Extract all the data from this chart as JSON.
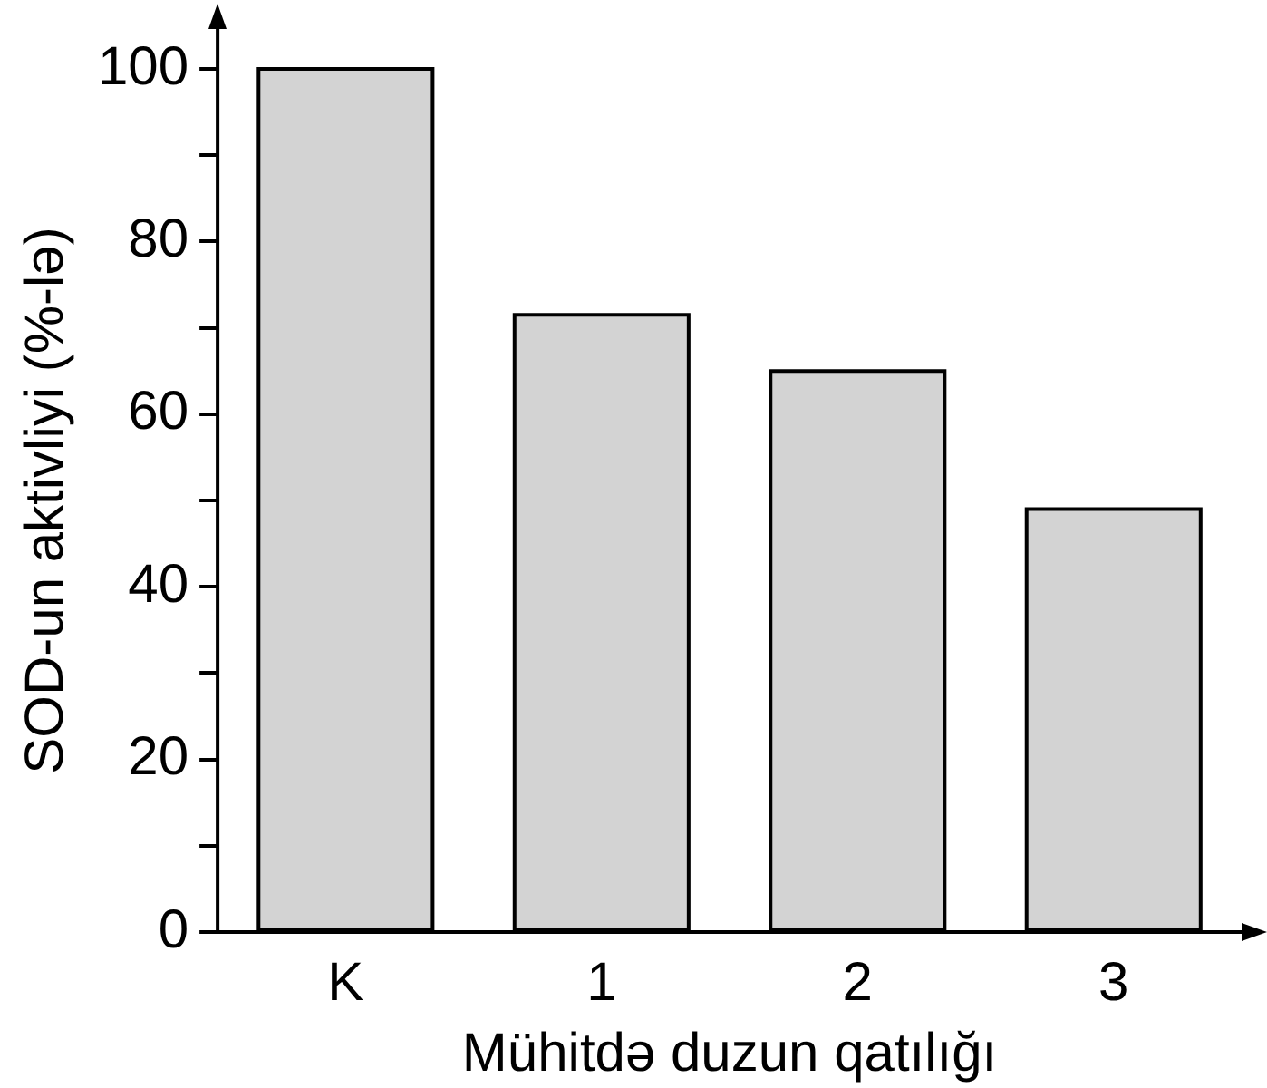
{
  "chart_data": {
    "type": "bar",
    "xlabel": "Mühitdə duzun qatılığı",
    "ylabel": "SOD-un aktivliyi (%-lə)",
    "categories": [
      "K",
      "1",
      "2",
      "3"
    ],
    "values": [
      100,
      71.5,
      65,
      49
    ],
    "color": "#d3d3d3",
    "ylim": [
      0,
      100
    ],
    "yticks": [
      0,
      {
        "value": 10,
        "label": null
      },
      20,
      {
        "value": 30,
        "label": null
      },
      40,
      {
        "value": 50,
        "label": null
      },
      60,
      {
        "value": 70,
        "label": null
      },
      80,
      {
        "value": 90,
        "label": null
      },
      100
    ],
    "grid": false,
    "legend": false
  }
}
